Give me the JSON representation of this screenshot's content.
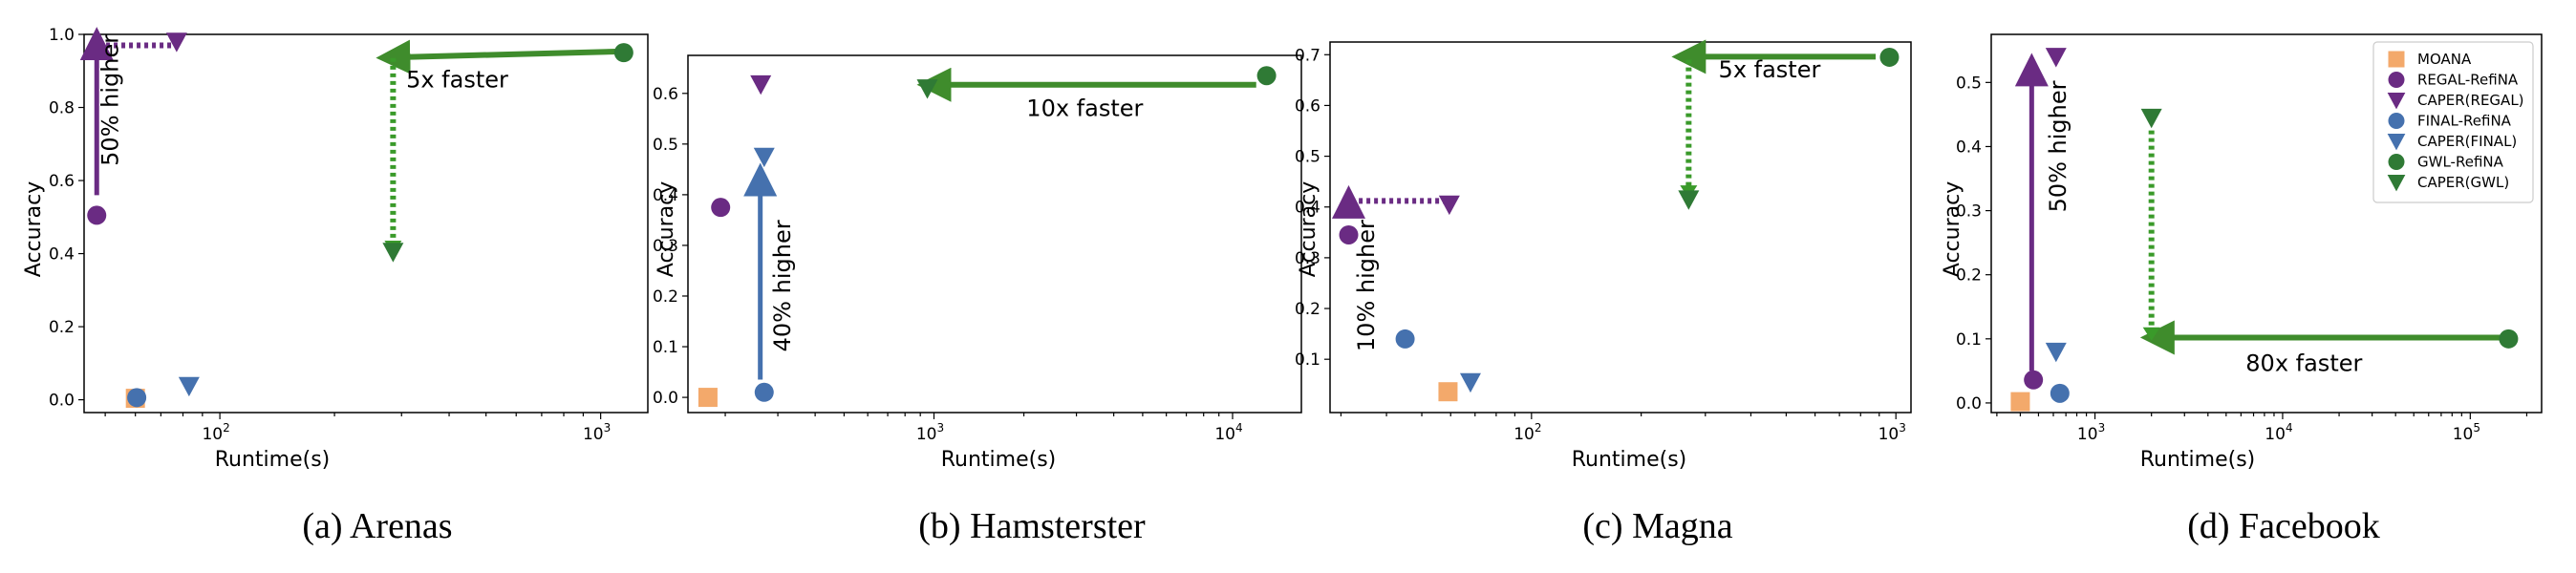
{
  "colors": {
    "moana": "#f3a96b",
    "regal": "#6a2b83",
    "final": "#4571ae",
    "gwl": "#2f7a35",
    "purple_arrow": "#6a2b83",
    "blue_arrow": "#4571ae",
    "green_arrow": "#3f8c2c",
    "green_dotted": "#3a9a2a"
  },
  "chart_data": [
    {
      "type": "scatter",
      "caption": "(a) Arenas",
      "xlabel": "Runtime(s)",
      "ylabel": "Accuracy",
      "xscale": "log",
      "xlim": [
        44,
        1330
      ],
      "ylim": [
        -0.035,
        1.0
      ],
      "xticks": [
        {
          "value": 100,
          "base": "10",
          "exp": "2"
        },
        {
          "value": 1000,
          "base": "10",
          "exp": "3"
        }
      ],
      "yticks": [
        {
          "value": 0.0,
          "label": "0.0"
        },
        {
          "value": 0.2,
          "label": "0.2"
        },
        {
          "value": 0.4,
          "label": "0.4"
        },
        {
          "value": 0.6,
          "label": "0.6"
        },
        {
          "value": 0.8,
          "label": "0.8"
        },
        {
          "value": 1.0,
          "label": "1.0"
        }
      ],
      "points": [
        {
          "method": "MOANA",
          "x": 60,
          "y": 0.004
        },
        {
          "method": "REGAL-RefiNA",
          "x": 47.5,
          "y": 0.505
        },
        {
          "method": "CAPER(REGAL)",
          "x": 77,
          "y": 0.98
        },
        {
          "method": "FINAL-RefiNA",
          "x": 60.5,
          "y": 0.006
        },
        {
          "method": "CAPER(FINAL)",
          "x": 83,
          "y": 0.038
        },
        {
          "method": "GWL-RefiNA",
          "x": 1150,
          "y": 0.95
        },
        {
          "method": "CAPER(GWL)",
          "x": 285,
          "y": 0.405
        }
      ],
      "annotations": [
        {
          "kind": "solid",
          "color": "purple",
          "from": [
            47.5,
            0.56
          ],
          "to": [
            47.5,
            0.975
          ],
          "head": "triangle"
        },
        {
          "kind": "dotted",
          "color": "purple",
          "from": [
            48,
            0.97
          ],
          "to": [
            77,
            0.97
          ]
        },
        {
          "kind": "solid",
          "color": "green",
          "from": [
            1100,
            0.953
          ],
          "to": [
            285,
            0.937
          ],
          "head": "arrow"
        },
        {
          "kind": "dotted",
          "color": "green",
          "from": [
            285,
            0.935
          ],
          "to": [
            285,
            0.425
          ]
        },
        {
          "kind": "text",
          "text": "50% higher",
          "x": 54,
          "y": 0.82,
          "rotate": -90
        },
        {
          "kind": "text",
          "text": "5x faster",
          "x": 420,
          "y": 0.855,
          "rotate": 0
        }
      ]
    },
    {
      "type": "scatter",
      "caption": "(b) Hamsterster",
      "xlabel": "Runtime(s)",
      "ylabel": "Accuracy",
      "xscale": "log",
      "xlim": [
        150,
        17000
      ],
      "ylim": [
        -0.03,
        0.675
      ],
      "xticks": [
        {
          "value": 1000,
          "base": "10",
          "exp": "3"
        },
        {
          "value": 10000,
          "base": "10",
          "exp": "4"
        }
      ],
      "yticks": [
        {
          "value": 0.0,
          "label": "0.0"
        },
        {
          "value": 0.1,
          "label": "0.1"
        },
        {
          "value": 0.2,
          "label": "0.2"
        },
        {
          "value": 0.3,
          "label": "0.3"
        },
        {
          "value": 0.4,
          "label": "0.4"
        },
        {
          "value": 0.5,
          "label": "0.5"
        },
        {
          "value": 0.6,
          "label": "0.6"
        }
      ],
      "points": [
        {
          "method": "MOANA",
          "x": 175,
          "y": 0.0
        },
        {
          "method": "REGAL-RefiNA",
          "x": 193,
          "y": 0.375
        },
        {
          "method": "CAPER(REGAL)",
          "x": 263,
          "y": 0.618
        },
        {
          "method": "FINAL-RefiNA",
          "x": 270,
          "y": 0.01
        },
        {
          "method": "CAPER(FINAL)",
          "x": 270,
          "y": 0.475
        },
        {
          "method": "GWL-RefiNA",
          "x": 13000,
          "y": 0.635
        },
        {
          "method": "CAPER(GWL)",
          "x": 950,
          "y": 0.61
        }
      ],
      "annotations": [
        {
          "kind": "solid",
          "color": "blue",
          "from": [
            262,
            0.035
          ],
          "to": [
            262,
            0.43
          ],
          "head": "triangle"
        },
        {
          "kind": "solid",
          "color": "green",
          "from": [
            12000,
            0.617
          ],
          "to": [
            1000,
            0.617
          ],
          "head": "arrow"
        },
        {
          "kind": "text",
          "text": "40% higher",
          "x": 330,
          "y": 0.22,
          "rotate": -90
        },
        {
          "kind": "text",
          "text": "10x faster",
          "x": 3200,
          "y": 0.555,
          "rotate": 0
        }
      ]
    },
    {
      "type": "scatter",
      "caption": "(c) Magna",
      "xlabel": "Runtime(s)",
      "ylabel": "Accuracy",
      "xscale": "log",
      "xlim": [
        28,
        1100
      ],
      "ylim": [
        -0.005,
        0.725
      ],
      "xticks": [
        {
          "value": 100,
          "base": "10",
          "exp": "2"
        },
        {
          "value": 1000,
          "base": "10",
          "exp": "3"
        }
      ],
      "yticks": [
        {
          "value": 0.1,
          "label": "0.1"
        },
        {
          "value": 0.2,
          "label": "0.2"
        },
        {
          "value": 0.3,
          "label": "0.3"
        },
        {
          "value": 0.4,
          "label": "0.4"
        },
        {
          "value": 0.5,
          "label": "0.5"
        },
        {
          "value": 0.6,
          "label": "0.6"
        },
        {
          "value": 0.7,
          "label": "0.7"
        }
      ],
      "points": [
        {
          "method": "MOANA",
          "x": 59,
          "y": 0.036
        },
        {
          "method": "REGAL-RefiNA",
          "x": 31.5,
          "y": 0.345
        },
        {
          "method": "CAPER(REGAL)",
          "x": 59.5,
          "y": 0.405
        },
        {
          "method": "FINAL-RefiNA",
          "x": 45,
          "y": 0.14
        },
        {
          "method": "CAPER(FINAL)",
          "x": 68,
          "y": 0.055
        },
        {
          "method": "GWL-RefiNA",
          "x": 960,
          "y": 0.695
        },
        {
          "method": "CAPER(GWL)",
          "x": 270,
          "y": 0.415
        }
      ],
      "annotations": [
        {
          "kind": "solid",
          "color": "purple",
          "from": [
            31.5,
            0.38
          ],
          "to": [
            31.5,
            0.41
          ],
          "head": "triangle"
        },
        {
          "kind": "dotted",
          "color": "purple",
          "from": [
            32,
            0.412
          ],
          "to": [
            58,
            0.412
          ]
        },
        {
          "kind": "solid",
          "color": "green",
          "from": [
            880,
            0.696
          ],
          "to": [
            270,
            0.696
          ],
          "head": "arrow"
        },
        {
          "kind": "dotted",
          "color": "green",
          "from": [
            270,
            0.69
          ],
          "to": [
            270,
            0.435
          ]
        },
        {
          "kind": "text",
          "text": "10% higher",
          "x": 37,
          "y": 0.245,
          "rotate": -90
        },
        {
          "kind": "text",
          "text": "5x faster",
          "x": 450,
          "y": 0.655,
          "rotate": 0
        }
      ]
    },
    {
      "type": "scatter",
      "caption": "(d) Facebook",
      "xlabel": "Runtime(s)",
      "ylabel": "Accuracy",
      "xscale": "log",
      "xlim": [
        280,
        240000
      ],
      "ylim": [
        -0.015,
        0.575
      ],
      "xticks": [
        {
          "value": 1000,
          "base": "10",
          "exp": "3"
        },
        {
          "value": 10000,
          "base": "10",
          "exp": "4"
        },
        {
          "value": 100000,
          "base": "10",
          "exp": "5"
        }
      ],
      "yticks": [
        {
          "value": 0.0,
          "label": "0.0"
        },
        {
          "value": 0.1,
          "label": "0.1"
        },
        {
          "value": 0.2,
          "label": "0.2"
        },
        {
          "value": 0.3,
          "label": "0.3"
        },
        {
          "value": 0.4,
          "label": "0.4"
        },
        {
          "value": 0.5,
          "label": "0.5"
        }
      ],
      "points": [
        {
          "method": "MOANA",
          "x": 400,
          "y": 0.002
        },
        {
          "method": "REGAL-RefiNA",
          "x": 470,
          "y": 0.036
        },
        {
          "method": "CAPER(REGAL)",
          "x": 620,
          "y": 0.54
        },
        {
          "method": "FINAL-RefiNA",
          "x": 650,
          "y": 0.015
        },
        {
          "method": "CAPER(FINAL)",
          "x": 620,
          "y": 0.08
        },
        {
          "method": "GWL-RefiNA",
          "x": 160000,
          "y": 0.1
        },
        {
          "method": "CAPER(GWL)",
          "x": 2000,
          "y": 0.445
        }
      ],
      "annotations": [
        {
          "kind": "solid",
          "color": "purple",
          "from": [
            460,
            0.05
          ],
          "to": [
            460,
            0.52
          ],
          "head": "triangle"
        },
        {
          "kind": "solid",
          "color": "green",
          "from": [
            150000,
            0.102
          ],
          "to": [
            2150,
            0.102
          ],
          "head": "arrow"
        },
        {
          "kind": "dotted",
          "color": "green",
          "from": [
            2000,
            0.425
          ],
          "to": [
            2000,
            0.112
          ]
        },
        {
          "kind": "text",
          "text": "50% higher",
          "x": 700,
          "y": 0.4,
          "rotate": -90
        },
        {
          "kind": "text",
          "text": "80x faster",
          "x": 13000,
          "y": 0.05,
          "rotate": 0
        }
      ]
    }
  ],
  "legend": [
    {
      "label": "MOANA",
      "marker": "square",
      "color": "#f3a96b"
    },
    {
      "label": "REGAL-RefiNA",
      "marker": "circle",
      "color": "#6a2b83"
    },
    {
      "label": "CAPER(REGAL)",
      "marker": "triangle-down",
      "color": "#6a2b83"
    },
    {
      "label": "FINAL-RefiNA",
      "marker": "circle",
      "color": "#4571ae"
    },
    {
      "label": "CAPER(FINAL)",
      "marker": "triangle-down",
      "color": "#4571ae"
    },
    {
      "label": "GWL-RefiNA",
      "marker": "circle",
      "color": "#2f7a35"
    },
    {
      "label": "CAPER(GWL)",
      "marker": "triangle-down",
      "color": "#2f7a35"
    }
  ]
}
